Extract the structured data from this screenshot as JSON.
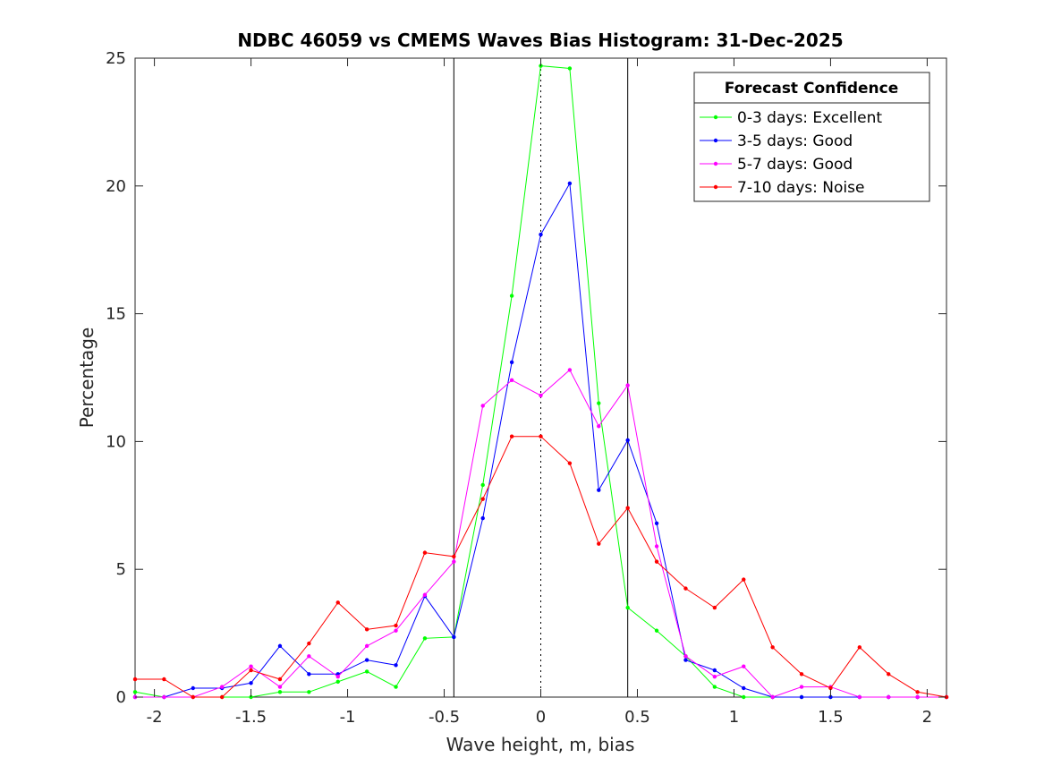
{
  "chart_data": {
    "type": "line",
    "title": "NDBC 46059 vs CMEMS Waves Bias Histogram: 31-Dec-2025",
    "xlabel": "Wave height, m, bias",
    "ylabel": "Percentage",
    "xlim": [
      -2.1,
      2.1
    ],
    "ylim": [
      0,
      25
    ],
    "xticks": [
      -2,
      -1.5,
      -1,
      -0.5,
      0,
      0.5,
      1,
      1.5,
      2
    ],
    "xtick_labels": [
      "-2",
      "-1.5",
      "-1",
      "-0.5",
      "0",
      "0.5",
      "1",
      "1.5",
      "2"
    ],
    "yticks": [
      0,
      5,
      10,
      15,
      20,
      25
    ],
    "ytick_labels": [
      "0",
      "5",
      "10",
      "15",
      "20",
      "25"
    ],
    "grid": false,
    "legend": {
      "title": "Forecast Confidence",
      "placement": "top-right"
    },
    "reference_lines": [
      {
        "x": -0.45,
        "style": "solid",
        "color": "#000000"
      },
      {
        "x": 0,
        "style": "dotted",
        "color": "#000000"
      },
      {
        "x": 0.45,
        "style": "solid",
        "color": "#000000"
      }
    ],
    "x": [
      -2.1,
      -1.95,
      -1.8,
      -1.65,
      -1.5,
      -1.35,
      -1.2,
      -1.05,
      -0.9,
      -0.75,
      -0.6,
      -0.45,
      -0.3,
      -0.15,
      0,
      0.15,
      0.3,
      0.45,
      0.6,
      0.75,
      0.9,
      1.05,
      1.2,
      1.35,
      1.5,
      1.65,
      1.8,
      1.95,
      2.1
    ],
    "series": [
      {
        "name": "0-3 days: Excellent",
        "color": "#00ff00",
        "values": [
          0.2,
          0,
          0,
          0,
          0,
          0.2,
          0.2,
          0.6,
          1.0,
          0.4,
          2.3,
          2.35,
          8.3,
          15.7,
          24.7,
          24.6,
          11.5,
          3.5,
          2.6,
          1.6,
          0.4,
          0,
          0,
          0,
          0,
          0,
          0,
          0,
          0
        ]
      },
      {
        "name": "3-5 days: Good",
        "color": "#0000ff",
        "values": [
          0,
          0,
          0.35,
          0.35,
          0.55,
          2.0,
          0.9,
          0.9,
          1.45,
          1.25,
          3.95,
          2.35,
          7.0,
          13.1,
          18.1,
          20.1,
          8.1,
          10.05,
          6.8,
          1.45,
          1.05,
          0.35,
          0,
          0,
          0,
          0,
          0,
          0,
          0
        ]
      },
      {
        "name": "5-7 days: Good",
        "color": "#ff00ff",
        "values": [
          0,
          0,
          0,
          0.4,
          1.2,
          0.4,
          1.6,
          0.8,
          2.0,
          2.6,
          4.0,
          5.3,
          11.4,
          12.4,
          11.8,
          12.8,
          10.6,
          12.2,
          5.9,
          1.6,
          0.8,
          1.2,
          0,
          0.4,
          0.4,
          0,
          0,
          0,
          0
        ]
      },
      {
        "name": "7-10 days: Noise",
        "color": "#ff0000",
        "values": [
          0.7,
          0.7,
          0,
          0,
          1.05,
          0.7,
          2.1,
          3.7,
          2.65,
          2.8,
          5.65,
          5.5,
          7.75,
          10.2,
          10.2,
          9.15,
          6.0,
          7.4,
          5.3,
          4.25,
          3.5,
          4.6,
          1.95,
          0.9,
          0.35,
          1.95,
          0.9,
          0.2,
          0
        ]
      }
    ]
  }
}
